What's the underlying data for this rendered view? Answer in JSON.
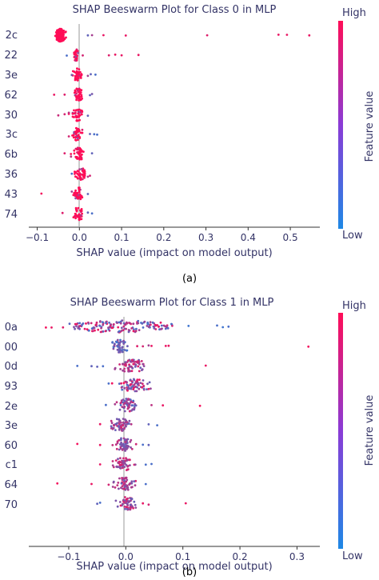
{
  "chart_data": [
    {
      "type": "scatter",
      "subtype": "shap-beeswarm",
      "title": "SHAP Beeswarm Plot for Class 0 in MLP",
      "xlabel": "SHAP value (impact on model output)",
      "ylabel": "",
      "xlim": [
        -0.12,
        0.57
      ],
      "xticks": [
        -0.1,
        0.0,
        0.1,
        0.2,
        0.3,
        0.4,
        0.5
      ],
      "xtick_labels": [
        "−0.1",
        "0.0",
        "0.1",
        "0.2",
        "0.3",
        "0.4",
        "0.5"
      ],
      "features": [
        "2c",
        "22",
        "3e",
        "62",
        "30",
        "3c",
        "6b",
        "36",
        "43",
        "74"
      ],
      "colorbar": {
        "label": "Feature value",
        "high": "High",
        "low": "Low"
      },
      "caption": "(a)",
      "grid": false,
      "rows": [
        {
          "feature": "2c",
          "core": [
            -0.045,
            0.005,
            1.0,
            7.0,
            180
          ],
          "points": [
            [
              0.057,
              0.9
            ],
            [
              0.11,
              0.9
            ],
            [
              0.303,
              0.85
            ],
            [
              0.472,
              0.9
            ],
            [
              0.492,
              0.9
            ],
            [
              0.545,
              0.9
            ],
            [
              0.02,
              0.3
            ],
            [
              0.03,
              0.6
            ]
          ]
        },
        {
          "feature": "22",
          "core": [
            -0.008,
            0.002,
            0.3,
            3.5,
            30
          ],
          "points": [
            [
              -0.03,
              0.2
            ],
            [
              0.07,
              0.85
            ],
            [
              0.085,
              0.9
            ],
            [
              0.1,
              0.9
            ],
            [
              0.14,
              0.9
            ],
            [
              0.008,
              0.8
            ]
          ]
        },
        {
          "feature": "3e",
          "core": [
            -0.005,
            0.005,
            0.5,
            4.0,
            40
          ],
          "points": [
            [
              0.027,
              0.3
            ],
            [
              0.038,
              0.2
            ],
            [
              0.02,
              0.6
            ],
            [
              -0.018,
              0.4
            ]
          ]
        },
        {
          "feature": "62",
          "core": [
            -0.004,
            0.006,
            0.5,
            4.0,
            40
          ],
          "points": [
            [
              -0.06,
              0.9
            ],
            [
              -0.035,
              0.85
            ],
            [
              0.025,
              0.3
            ],
            [
              0.03,
              0.4
            ]
          ]
        },
        {
          "feature": "30",
          "core": [
            -0.005,
            0.006,
            0.5,
            3.5,
            40
          ],
          "points": [
            [
              -0.05,
              0.75
            ],
            [
              -0.035,
              0.8
            ],
            [
              -0.025,
              0.7
            ],
            [
              0.02,
              0.3
            ]
          ]
        },
        {
          "feature": "3c",
          "core": [
            -0.004,
            0.006,
            0.3,
            3.5,
            40
          ],
          "points": [
            [
              -0.025,
              0.8
            ],
            [
              0.025,
              0.3
            ],
            [
              0.035,
              0.2
            ],
            [
              0.042,
              0.2
            ]
          ]
        },
        {
          "feature": "6b",
          "core": [
            -0.003,
            0.006,
            0.4,
            4.0,
            40
          ],
          "points": [
            [
              -0.035,
              0.85
            ],
            [
              -0.02,
              0.7
            ],
            [
              0.03,
              0.3
            ]
          ]
        },
        {
          "feature": "36",
          "core": [
            0.004,
            0.006,
            0.5,
            4.0,
            45
          ],
          "points": [
            [
              -0.018,
              0.2
            ],
            [
              0.02,
              0.7
            ],
            [
              0.025,
              0.8
            ]
          ]
        },
        {
          "feature": "43",
          "core": [
            -0.003,
            0.005,
            0.4,
            3.5,
            35
          ],
          "points": [
            [
              -0.09,
              0.95
            ],
            [
              -0.018,
              0.6
            ],
            [
              0.02,
              0.3
            ]
          ]
        },
        {
          "feature": "74",
          "core": [
            -0.002,
            0.005,
            0.5,
            3.5,
            35
          ],
          "points": [
            [
              -0.04,
              0.85
            ],
            [
              0.02,
              0.3
            ],
            [
              0.03,
              0.2
            ]
          ]
        }
      ]
    },
    {
      "type": "scatter",
      "subtype": "shap-beeswarm",
      "title": "SHAP Beeswarm Plot for Class 1 in MLP",
      "xlabel": "SHAP value (impact on model output)",
      "ylabel": "",
      "xlim": [
        -0.17,
        0.34
      ],
      "xticks": [
        -0.1,
        0.0,
        0.1,
        0.2,
        0.3
      ],
      "xtick_labels": [
        "−0.1",
        "0.0",
        "0.1",
        "0.2",
        "0.3"
      ],
      "features": [
        "0a",
        "00",
        "0d",
        "93",
        "2e",
        "3e",
        "60",
        "c1",
        "64",
        "70"
      ],
      "colorbar": {
        "label": "Feature value",
        "high": "High",
        "low": "Low"
      },
      "caption": "(b)",
      "grid": false,
      "rows": [
        {
          "feature": "0a",
          "spread": true,
          "core": [
            -0.01,
            0.03,
            0.15,
            0.95,
            160
          ],
          "points": [
            [
              -0.14,
              0.95
            ],
            [
              -0.13,
              0.9
            ],
            [
              -0.11,
              0.85
            ],
            [
              0.08,
              0.2
            ],
            [
              0.11,
              0.15
            ],
            [
              0.16,
              0.2
            ],
            [
              0.18,
              0.2
            ],
            [
              0.17,
              0.15
            ]
          ]
        },
        {
          "feature": "00",
          "core": [
            -0.01,
            0.006,
            0.1,
            0.5,
            50
          ],
          "points": [
            [
              0.02,
              0.85
            ],
            [
              0.03,
              0.8
            ],
            [
              0.045,
              0.9
            ],
            [
              0.07,
              0.9
            ],
            [
              0.075,
              0.9
            ],
            [
              0.32,
              0.95
            ],
            [
              0.04,
              0.6
            ]
          ]
        },
        {
          "feature": "0d",
          "core": [
            0.01,
            0.012,
            0.3,
            0.9,
            70
          ],
          "points": [
            [
              -0.085,
              0.2
            ],
            [
              -0.05,
              0.3
            ],
            [
              -0.04,
              0.2
            ],
            [
              0.14,
              0.9
            ],
            [
              -0.06,
              0.3
            ]
          ]
        },
        {
          "feature": "93",
          "core": [
            0.012,
            0.012,
            0.2,
            1.0,
            70
          ],
          "points": [
            [
              -0.03,
              0.2
            ],
            [
              0.04,
              0.9
            ],
            [
              0.02,
              0.8
            ]
          ]
        },
        {
          "feature": "2e",
          "core": [
            0.002,
            0.008,
            0.2,
            0.8,
            60
          ],
          "points": [
            [
              -0.035,
              0.2
            ],
            [
              0.045,
              0.7
            ],
            [
              0.065,
              0.9
            ],
            [
              0.13,
              0.95
            ]
          ]
        },
        {
          "feature": "3e",
          "core": [
            -0.008,
            0.008,
            0.3,
            0.8,
            60
          ],
          "points": [
            [
              -0.045,
              0.9
            ],
            [
              0.04,
              0.3
            ],
            [
              0.055,
              0.2
            ]
          ]
        },
        {
          "feature": "60",
          "core": [
            -0.004,
            0.008,
            0.3,
            0.8,
            55
          ],
          "points": [
            [
              -0.085,
              0.95
            ],
            [
              -0.045,
              0.9
            ],
            [
              0.04,
              0.3
            ],
            [
              0.03,
              0.2
            ]
          ]
        },
        {
          "feature": "c1",
          "core": [
            -0.004,
            0.008,
            0.4,
            0.9,
            55
          ],
          "points": [
            [
              -0.045,
              0.9
            ],
            [
              0.035,
              0.2
            ],
            [
              0.045,
              0.2
            ]
          ]
        },
        {
          "feature": "64",
          "core": [
            -0.002,
            0.008,
            0.3,
            0.9,
            55
          ],
          "points": [
            [
              -0.12,
              0.95
            ],
            [
              -0.06,
              0.9
            ],
            [
              -0.03,
              0.8
            ],
            [
              0.035,
              0.2
            ]
          ]
        },
        {
          "feature": "70",
          "core": [
            0.002,
            0.008,
            0.3,
            0.9,
            55
          ],
          "points": [
            [
              -0.05,
              0.3
            ],
            [
              -0.045,
              0.2
            ],
            [
              0.03,
              0.9
            ],
            [
              0.04,
              0.8
            ],
            [
              0.105,
              0.9
            ]
          ]
        }
      ]
    }
  ],
  "colors": {
    "low": "#1e88e5",
    "high": "#ff0d57",
    "text": "#333366",
    "axis": "#333333",
    "zero_line": "#999999"
  }
}
